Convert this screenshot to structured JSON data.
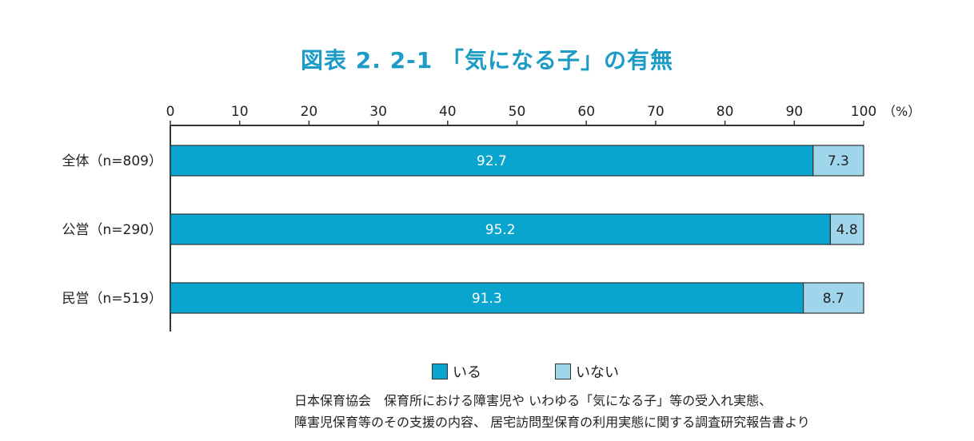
{
  "chart_data": {
    "type": "bar",
    "orientation": "horizontal",
    "stacked": true,
    "title": "図表 2. 2-1 「気になる子」の有無",
    "unit": "（%）",
    "xlim": [
      0,
      100
    ],
    "x_ticks": [
      "0",
      "10",
      "20",
      "30",
      "40",
      "50",
      "60",
      "70",
      "80",
      "90",
      "100"
    ],
    "categories": [
      "全体（n=809）",
      "公営（n=290）",
      "民営（n=519）"
    ],
    "series": [
      {
        "name": "いる",
        "color": "#0aa5cf",
        "values": [
          92.7,
          95.2,
          91.3
        ],
        "labels": [
          "92.7",
          "95.2",
          "91.3"
        ]
      },
      {
        "name": "いない",
        "color": "#9fd6ec",
        "values": [
          7.3,
          4.8,
          8.7
        ],
        "labels": [
          "7.3",
          "4.8",
          "8.7"
        ]
      }
    ],
    "legend_position": "bottom",
    "grid": false
  },
  "source_lines": [
    "日本保育協会　保育所における障害児や いわゆる「気になる子」等の受入れ実態、",
    "障害児保育等のその支援の内容、 居宅訪問型保育の利用実態に関する調査研究報告書より"
  ]
}
